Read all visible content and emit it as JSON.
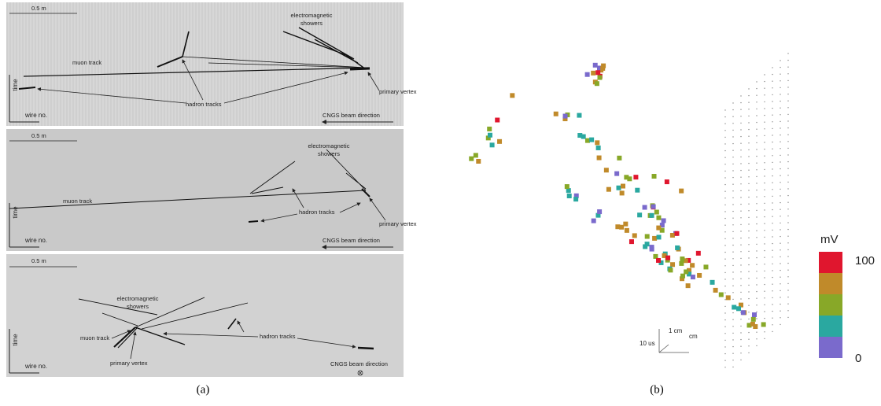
{
  "panel_a": {
    "caption": "(a)",
    "images": [
      {
        "scale": "0.5 m",
        "showers": [
          "electromagnetic",
          "showers"
        ],
        "muon": "muon track",
        "hadron": "hadron tracks",
        "vertex": "primary vertex",
        "time": "time",
        "wire": "wire no.",
        "beam": "CNGS beam direction"
      },
      {
        "scale": "0.5 m",
        "showers": [
          "electromagnetic",
          "showers"
        ],
        "muon": "muon track",
        "hadron": "hadron tracks",
        "vertex": "primary vertex",
        "time": "time",
        "wire": "wire no.",
        "beam": "CNGS beam direction"
      },
      {
        "scale": "0.5 m",
        "showers": [
          "electromagnetic",
          "showers"
        ],
        "muon": "muon track",
        "hadron": "hadron tracks",
        "vertex": "primary vertex",
        "time": "time",
        "wire": "wire no.",
        "beam": "CNGS beam direction"
      }
    ]
  },
  "panel_b": {
    "caption": "(b)",
    "colorbar_title": "mV",
    "colorbar_max": "100",
    "colorbar_min": "0",
    "axis_time": "10 us",
    "axis_y": "1 cm",
    "axis_z": "cm"
  }
}
